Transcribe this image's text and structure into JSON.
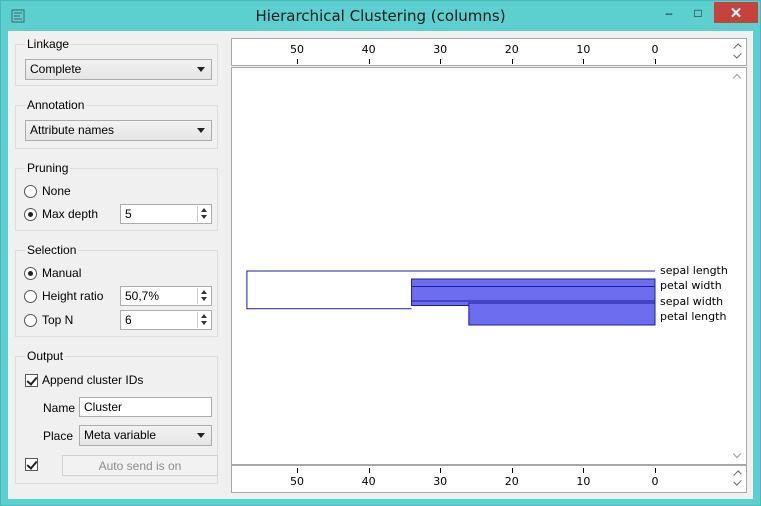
{
  "window": {
    "title": "Hierarchical Clustering (columns)",
    "controls": {
      "minimize": "–",
      "maximize": "□",
      "close": "✕"
    },
    "app_icon": "widget-icon"
  },
  "linkage": {
    "title": "Linkage",
    "selected": "Complete"
  },
  "annotation": {
    "title": "Annotation",
    "selected": "Attribute names"
  },
  "pruning": {
    "title": "Pruning",
    "options": [
      {
        "label": "None",
        "checked": false
      },
      {
        "label": "Max depth",
        "checked": true
      }
    ],
    "max_depth_value": "5"
  },
  "selection": {
    "title": "Selection",
    "options": [
      {
        "label": "Manual",
        "checked": true
      },
      {
        "label": "Height ratio",
        "checked": false
      },
      {
        "label": "Top N",
        "checked": false
      }
    ],
    "height_ratio_value": "50,7%",
    "top_n_value": "6"
  },
  "output": {
    "title": "Output",
    "append_cluster_ids_label": "Append cluster IDs",
    "append_cluster_ids_checked": true,
    "name_label": "Name",
    "name_value": "Cluster",
    "place_label": "Place",
    "place_selected": "Meta variable",
    "auto_send_checked": true,
    "auto_send_label": "Auto send is on"
  },
  "chart_data": {
    "type": "dendrogram",
    "orientation": "horizontal",
    "x_ticks": [
      50,
      40,
      30,
      20,
      10,
      0
    ],
    "leaves": [
      "sepal length",
      "petal width",
      "sepal width",
      "petal length"
    ],
    "merges": [
      {
        "left": "sepal width",
        "right": "petal length",
        "height": 26,
        "selected": true
      },
      {
        "left": "petal width",
        "right": "cluster(sepal width, petal length)",
        "height": 34,
        "selected": true
      },
      {
        "left": "sepal length",
        "right": "cluster(petal width, sepal width, petal length)",
        "height": 57,
        "selected": false
      }
    ],
    "colors": {
      "line": "#1c1ca0",
      "selection": "#6d6df0"
    }
  }
}
